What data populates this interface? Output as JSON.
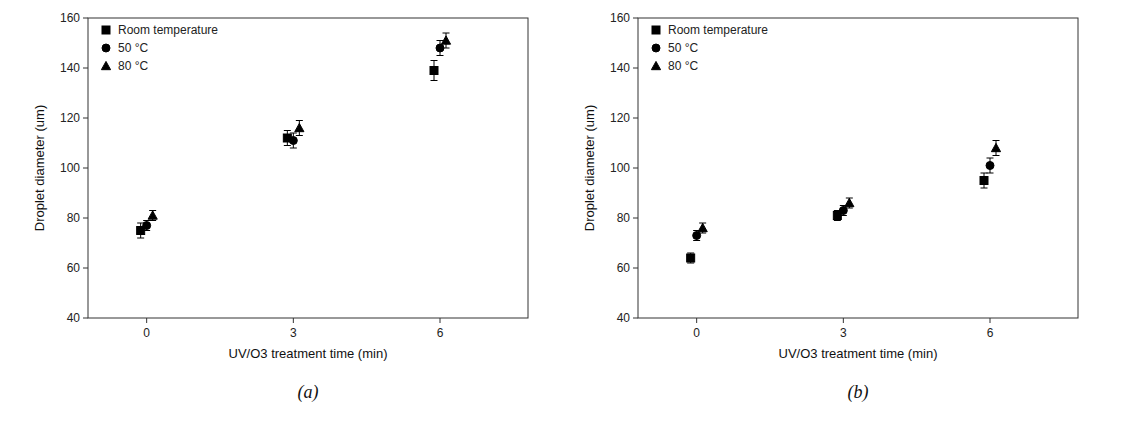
{
  "chart_data": [
    {
      "type": "scatter",
      "title": "(a)",
      "x_label": "UV/O3 treatment time (min)",
      "y_label": "Droplet diameter (um)",
      "x": [
        0,
        3,
        6
      ],
      "xlim": [
        -1.2,
        7.8
      ],
      "xticks": [
        0,
        3,
        6
      ],
      "ylim": [
        40,
        160
      ],
      "yticks": [
        40,
        60,
        80,
        100,
        120,
        140,
        160
      ],
      "grid": false,
      "legend": "upper left",
      "series": [
        {
          "name": "Room temperature",
          "marker": "square",
          "color": "black",
          "values": [
            75,
            112,
            139
          ],
          "yerr": [
            3,
            3,
            4
          ]
        },
        {
          "name": "50 °C",
          "marker": "circle",
          "color": "black",
          "values": [
            77,
            111,
            148
          ],
          "yerr": [
            2,
            3,
            3
          ]
        },
        {
          "name": "80 °C",
          "marker": "triangle",
          "color": "black",
          "values": [
            81,
            116,
            151
          ],
          "yerr": [
            2,
            3,
            3
          ]
        }
      ]
    },
    {
      "type": "scatter",
      "title": "(b)",
      "x_label": "UV/O3 treatment time (min)",
      "y_label": "Droplet diameter (um)",
      "x": [
        0,
        3,
        6
      ],
      "xlim": [
        -1.2,
        7.8
      ],
      "xticks": [
        0,
        3,
        6
      ],
      "ylim": [
        40,
        160
      ],
      "yticks": [
        40,
        60,
        80,
        100,
        120,
        140,
        160
      ],
      "grid": false,
      "legend": "upper left",
      "series": [
        {
          "name": "Room temperature",
          "marker": "square",
          "color": "black",
          "values": [
            64,
            81,
            95
          ],
          "yerr": [
            2,
            2,
            3
          ]
        },
        {
          "name": "50 °C",
          "marker": "circle",
          "color": "black",
          "values": [
            73,
            83,
            101
          ],
          "yerr": [
            2,
            2,
            3
          ]
        },
        {
          "name": "80 °C",
          "marker": "triangle",
          "color": "black",
          "values": [
            76,
            86,
            108
          ],
          "yerr": [
            2,
            2,
            3
          ]
        }
      ]
    }
  ]
}
